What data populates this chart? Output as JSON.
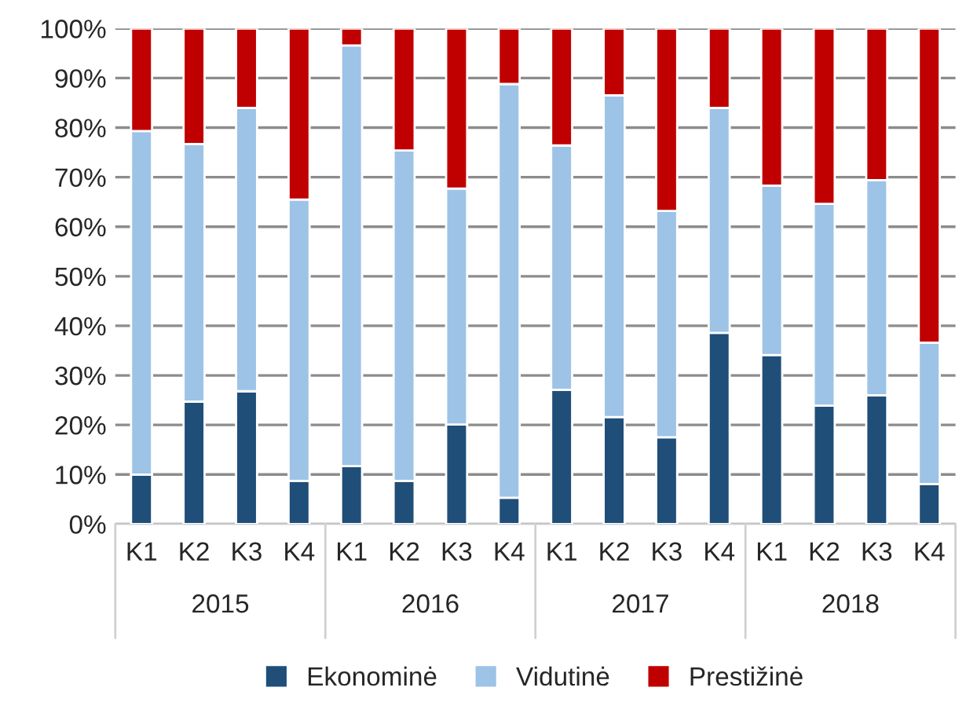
{
  "chart_data": {
    "type": "bar",
    "stacked": true,
    "categories": [
      "K1",
      "K2",
      "K3",
      "K4",
      "K1",
      "K2",
      "K3",
      "K4",
      "K1",
      "K2",
      "K3",
      "K4",
      "K1",
      "K2",
      "K3",
      "K4"
    ],
    "series": [
      {
        "name": "Ekonominė",
        "color": "#1f4e79",
        "values": [
          10.0,
          24.7,
          26.8,
          8.7,
          11.7,
          8.7,
          20.1,
          5.3,
          27.1,
          21.6,
          17.5,
          38.6,
          34.1,
          23.9,
          26.0,
          8.1
        ]
      },
      {
        "name": "Vidutinė",
        "color": "#9dc3e6",
        "values": [
          69.3,
          52.0,
          57.2,
          56.8,
          84.9,
          66.7,
          47.6,
          83.5,
          49.3,
          64.9,
          45.7,
          45.4,
          34.2,
          40.7,
          43.4,
          28.5
        ]
      },
      {
        "name": "Prestižinė",
        "color": "#c00000",
        "values": [
          20.7,
          23.3,
          16.0,
          34.5,
          3.4,
          24.6,
          32.3,
          11.2,
          23.6,
          13.5,
          36.8,
          16.0,
          31.7,
          35.4,
          30.6,
          63.4
        ]
      }
    ],
    "annotations": [
      "2015",
      "2016",
      "2017",
      "2018"
    ],
    "ylim": [
      0,
      100
    ],
    "yticks": [
      {
        "value": 0,
        "label": "0%"
      },
      {
        "value": 10,
        "label": "10%"
      },
      {
        "value": 20,
        "label": "20%"
      },
      {
        "value": 30,
        "label": "30%"
      },
      {
        "value": 40,
        "label": "40%"
      },
      {
        "value": 50,
        "label": "50%"
      },
      {
        "value": 60,
        "label": "60%"
      },
      {
        "value": 70,
        "label": "70%"
      },
      {
        "value": 80,
        "label": "80%"
      },
      {
        "value": 90,
        "label": "90%"
      },
      {
        "value": 100,
        "label": "100%"
      }
    ],
    "grid": "y",
    "legend": "bottom"
  }
}
